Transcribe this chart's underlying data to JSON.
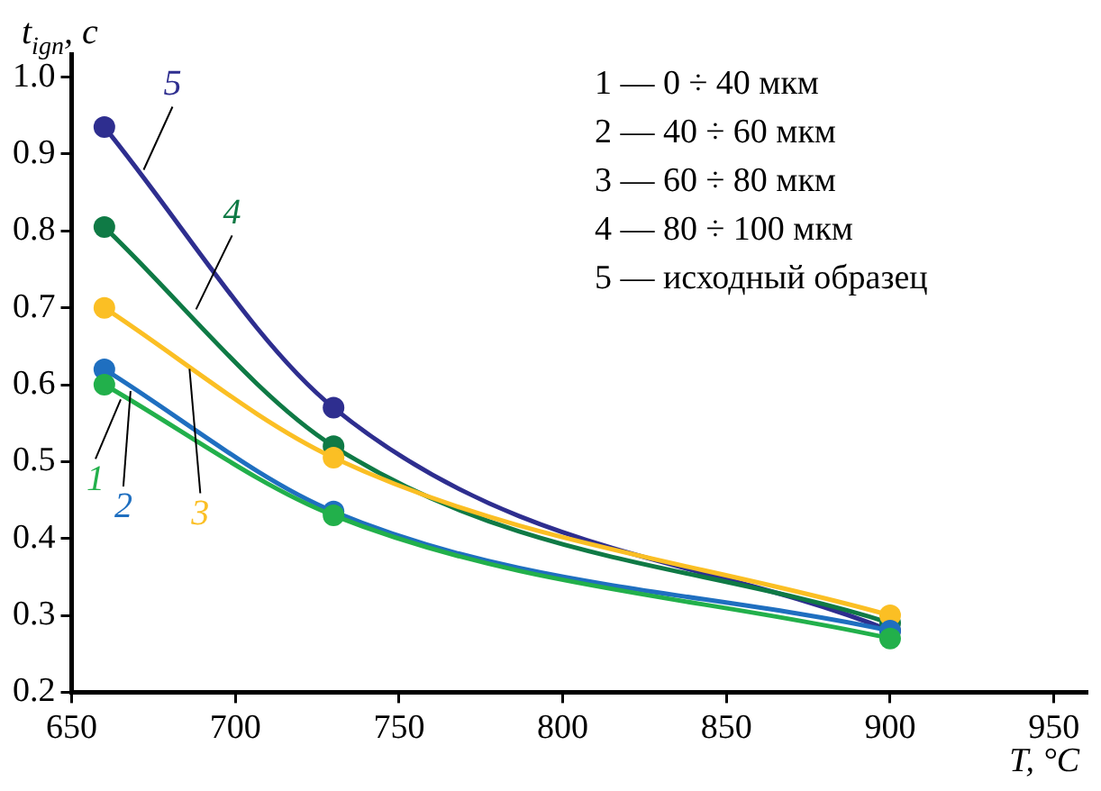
{
  "chart_data": {
    "type": "line",
    "xlabel": "T, °C",
    "ylabel": "t$_{ign}$, с",
    "x": [
      660,
      730,
      900
    ],
    "series": [
      {
        "name": "1",
        "color": "#22b04b",
        "values": [
          0.6,
          0.43,
          0.27
        ]
      },
      {
        "name": "2",
        "color": "#1f6fc0",
        "values": [
          0.62,
          0.435,
          0.28
        ]
      },
      {
        "name": "3",
        "color": "#fbbf24",
        "values": [
          0.7,
          0.505,
          0.3
        ]
      },
      {
        "name": "4",
        "color": "#0f7a45",
        "values": [
          0.805,
          0.52,
          0.29
        ]
      },
      {
        "name": "5",
        "color": "#2e2e8f",
        "values": [
          0.935,
          0.57,
          0.28
        ]
      }
    ],
    "xlim": [
      650,
      960
    ],
    "xticks": [
      650,
      700,
      750,
      800,
      850,
      900,
      950
    ],
    "ylim": [
      0.2,
      1.03
    ],
    "yticks": [
      0.2,
      0.3,
      0.4,
      0.5,
      0.6,
      0.7,
      0.8,
      0.9,
      {
        "value": 1,
        "label": "1.0"
      }
    ],
    "marker": "circle",
    "line_style": "solid",
    "grid": false,
    "legend": false,
    "annotations": [
      "1 — 0 ÷ 40 мкм",
      "2 — 40 ÷ 60 мкм",
      "3 — 60 ÷ 80 мкм",
      "4 — 80 ÷ 100 мкм",
      "5 — исходный образец"
    ]
  }
}
